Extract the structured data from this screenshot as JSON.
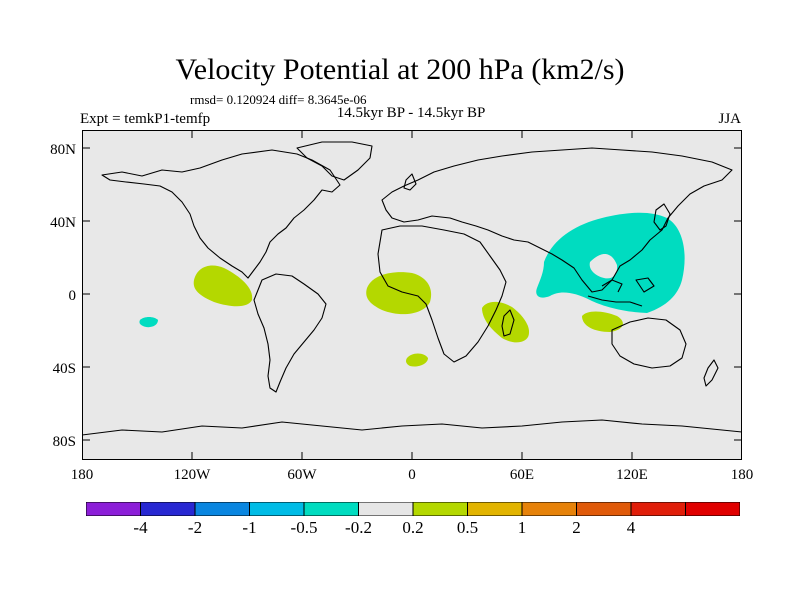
{
  "title": "Velocity Potential at 200 hPa (km2/s)",
  "stats_line": "rmsd= 0.120924 diff= 8.3645e-06",
  "experiment": "Expt = temkP1-temfp",
  "comparison": "14.5kyr BP - 14.5kyr BP",
  "season": "JJA",
  "lat_labels": [
    "80N",
    "40N",
    "0",
    "40S",
    "80S"
  ],
  "lon_labels": [
    "180",
    "120W",
    "60W",
    "0",
    "60E",
    "120E",
    "180"
  ],
  "map_colors": {
    "ocean": "#e8e8e8",
    "coast": "#000000"
  },
  "anomaly_regions": [
    {
      "name": "west-pacific-asia-negative",
      "category": "-0.5 to -0.2",
      "color": "#00dcc0"
    },
    {
      "name": "tropical-east-pacific-positive",
      "category": "0.2 to 0.5",
      "color": "#b4d800"
    },
    {
      "name": "equatorial-atlantic-positive",
      "category": "0.2 to 0.5",
      "color": "#b4d800"
    },
    {
      "name": "mozambique-channel-positive",
      "category": "0.2 to 0.5",
      "color": "#b4d800"
    },
    {
      "name": "south-atlantic-positive",
      "category": "0.2 to 0.5",
      "color": "#b4d800"
    },
    {
      "name": "south-indian-ocean-positive",
      "category": "0.2 to 0.5",
      "color": "#b4d800"
    },
    {
      "name": "south-pacific-negative",
      "category": "-0.5 to -0.2",
      "color": "#00dcc0"
    }
  ],
  "colorbar": {
    "colors": [
      "#8c1ed8",
      "#2828d2",
      "#0a86e0",
      "#00bce6",
      "#00dcc0",
      "#e6e6e6",
      "#b4d800",
      "#e2b400",
      "#e6820a",
      "#e05a0a",
      "#e01e0a",
      "#e00000"
    ],
    "labels": [
      "-4",
      "-2",
      "-1",
      "-0.5",
      "-0.2",
      "0.2",
      "0.5",
      "1",
      "2",
      "4"
    ]
  }
}
